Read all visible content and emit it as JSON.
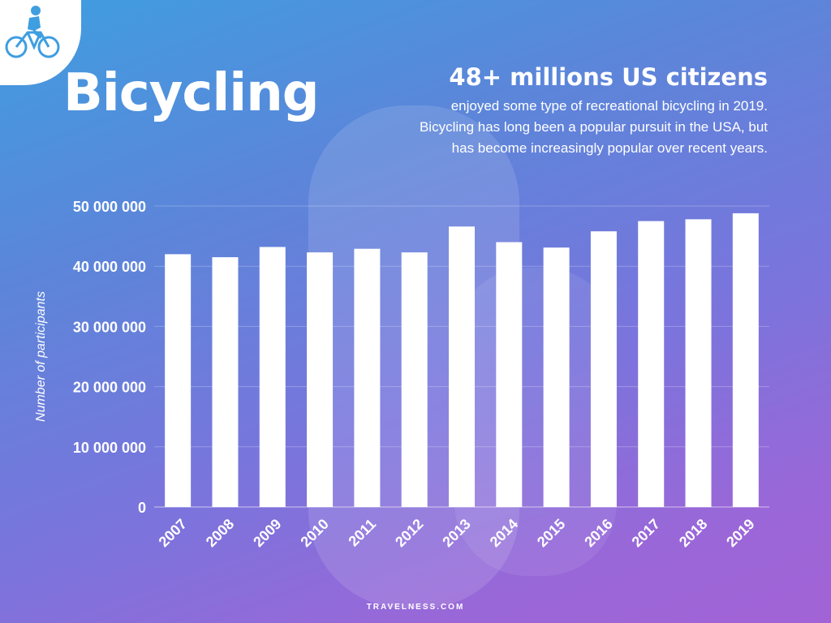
{
  "title": "Bicycling",
  "headline": "48+ millions US citizens",
  "description": [
    "enjoyed some type of recreational bicycling in 2019.",
    "Bicycling has long been a popular pursuit in the USA, but",
    "has become increasingly popular over recent years."
  ],
  "footer": "TRAVELNESS.COM",
  "logo_icon": "cyclist-icon",
  "colors": {
    "bar": "#ffffff",
    "text": "#ffffff",
    "logo": "#3f9ee0"
  },
  "chart_data": {
    "type": "bar",
    "categories": [
      "2007",
      "2008",
      "2009",
      "2010",
      "2011",
      "2012",
      "2013",
      "2014",
      "2015",
      "2016",
      "2017",
      "2018",
      "2019"
    ],
    "values": [
      42000000,
      41500000,
      43200000,
      42300000,
      42900000,
      42300000,
      46600000,
      44000000,
      43100000,
      45800000,
      47500000,
      47800000,
      48800000
    ],
    "ylabel": "Number of participants",
    "xlabel": "",
    "ylim": [
      0,
      50000000
    ],
    "yticks": [
      "0",
      "10 000 000",
      "20 000 000",
      "30 000 000",
      "40 000 000",
      "50 000 000"
    ],
    "ytick_values": [
      0,
      10000000,
      20000000,
      30000000,
      40000000,
      50000000
    ],
    "grid": true,
    "legend": "none"
  }
}
